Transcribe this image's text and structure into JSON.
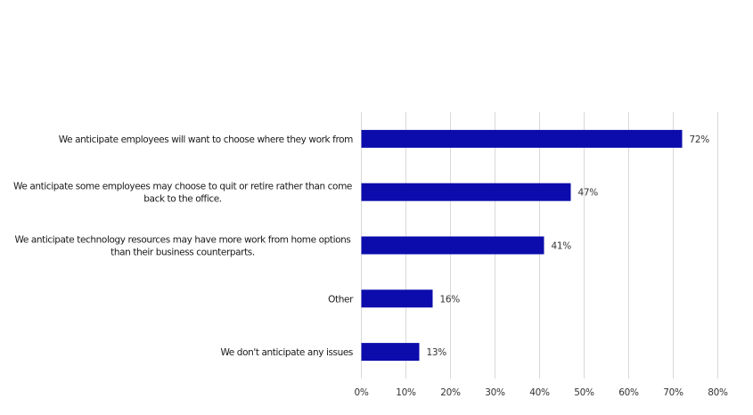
{
  "chart_data": {
    "type": "bar",
    "orientation": "horizontal",
    "categories": [
      [
        "We anticipate employees will want to choose where they work from"
      ],
      [
        "We anticipate some employees may choose to quit or retire rather than come",
        "back to the office."
      ],
      [
        "We anticipate technology resources may have more work from home options",
        "than their business counterparts."
      ],
      [
        "Other"
      ],
      [
        "We don't anticipate any issues"
      ]
    ],
    "values": [
      72,
      47,
      41,
      16,
      13
    ],
    "data_labels": [
      "72%",
      "47%",
      "41%",
      "16%",
      "13%"
    ],
    "xlim": [
      0,
      80
    ],
    "xticks": [
      "0%",
      "10%",
      "20%",
      "30%",
      "40%",
      "50%",
      "60%",
      "70%",
      "80%"
    ],
    "grid": "vertical",
    "bar_color": "#0c0cac",
    "grid_color": "#d9d9d9",
    "title": "",
    "xlabel": "",
    "ylabel": ""
  }
}
